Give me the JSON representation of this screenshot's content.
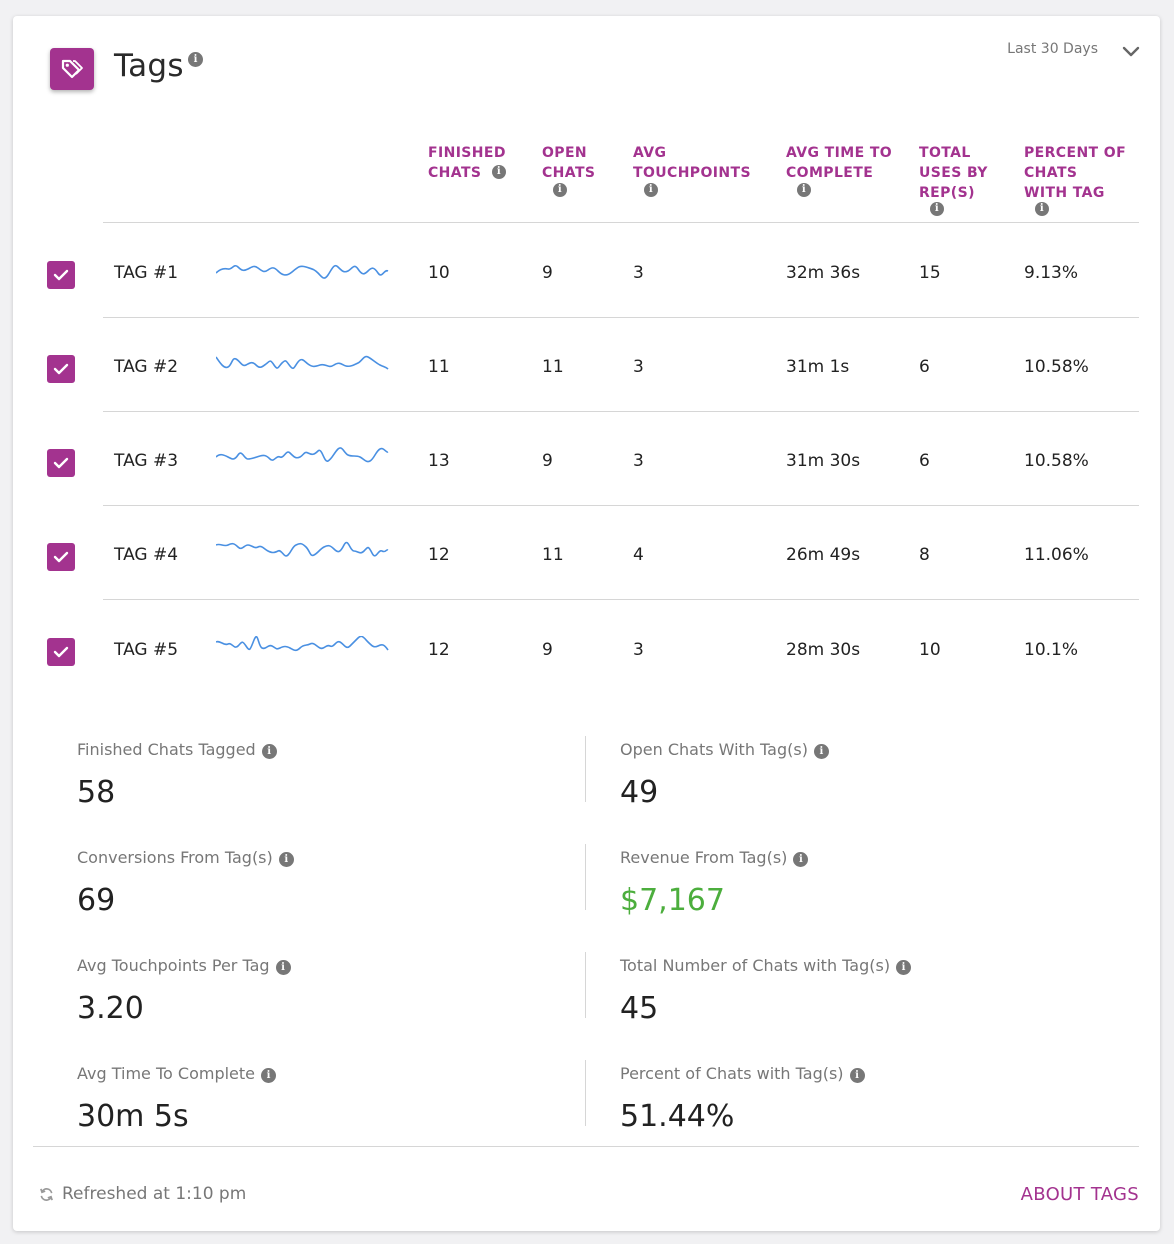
{
  "header": {
    "title": "Tags",
    "range": "Last 30 Days",
    "tag_icon": "tag-icon",
    "info_icon": "info-icon",
    "chevron_icon": "chevron-down-icon",
    "accent_color": "#a3338f"
  },
  "columns": [
    {
      "line1": "FINISHED",
      "line2": "CHATS",
      "line3": "",
      "line4": ""
    },
    {
      "line1": "OPEN",
      "line2": "CHATS",
      "line3": "",
      "line4": ""
    },
    {
      "line1": "AVG",
      "line2": "TOUCHPOINTS",
      "line3": "",
      "line4": ""
    },
    {
      "line1": "AVG TIME TO",
      "line2": "COMPLETE",
      "line3": "",
      "line4": ""
    },
    {
      "line1": "TOTAL",
      "line2": "USES BY",
      "line3": "REP(S)",
      "line4": ""
    },
    {
      "line1": "PERCENT OF",
      "line2": "CHATS",
      "line3": "WITH TAG",
      "line4": ""
    }
  ],
  "rows": [
    {
      "checked": true,
      "name": "TAG #1",
      "finished": "10",
      "open": "9",
      "touchpoints": "3",
      "avg_time": "32m 36s",
      "uses": "15",
      "percent": "9.13%"
    },
    {
      "checked": true,
      "name": "TAG #2",
      "finished": "11",
      "open": "11",
      "touchpoints": "3",
      "avg_time": "31m 1s",
      "uses": "6",
      "percent": "10.58%"
    },
    {
      "checked": true,
      "name": "TAG #3",
      "finished": "13",
      "open": "9",
      "touchpoints": "3",
      "avg_time": "31m 30s",
      "uses": "6",
      "percent": "10.58%"
    },
    {
      "checked": true,
      "name": "TAG #4",
      "finished": "12",
      "open": "11",
      "touchpoints": "4",
      "avg_time": "26m 49s",
      "uses": "8",
      "percent": "11.06%"
    },
    {
      "checked": true,
      "name": "TAG #5",
      "finished": "12",
      "open": "9",
      "touchpoints": "3",
      "avg_time": "28m 30s",
      "uses": "10",
      "percent": "10.1%"
    }
  ],
  "stats": [
    {
      "label": "Finished Chats Tagged",
      "value": "58"
    },
    {
      "label": "Open Chats With Tag(s)",
      "value": "49"
    },
    {
      "label": "Conversions From Tag(s)",
      "value": "69"
    },
    {
      "label": "Revenue From Tag(s)",
      "value": "$7,167",
      "color": "#4cae3d"
    },
    {
      "label": "Avg Touchpoints Per Tag",
      "value": "3.20"
    },
    {
      "label": "Total Number of Chats with Tag(s)",
      "value": "45"
    },
    {
      "label": "Avg Time To Complete",
      "value": "30m 5s"
    },
    {
      "label": "Percent of Chats with Tag(s)",
      "value": "51.44%"
    }
  ],
  "footer": {
    "refresh_text": "Refreshed at 1:10 pm",
    "refresh_icon": "refresh-icon",
    "about_link": "ABOUT TAGS"
  },
  "sparkline_color": "#4a90e2"
}
